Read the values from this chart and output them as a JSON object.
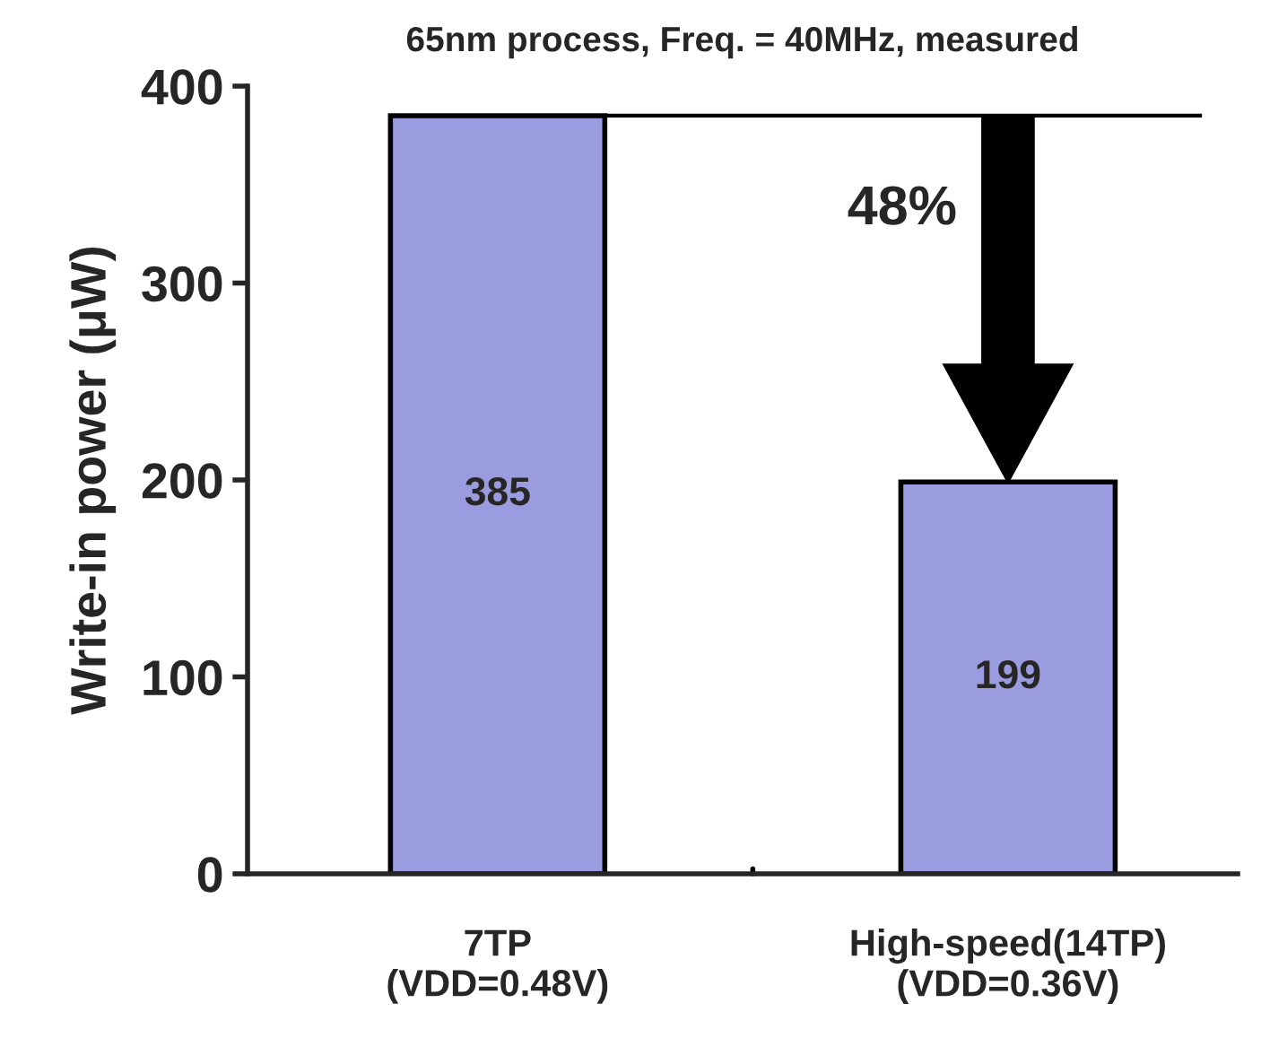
{
  "chart_data": {
    "type": "bar",
    "title": "65nm process, Freq. = 40MHz, measured",
    "ylabel": "Write-in power (μW)",
    "categories": [
      "7TP\n(VDD=0.48V)",
      "High-speed(14TP)\n(VDD=0.36V)"
    ],
    "values": [
      385,
      199
    ],
    "color": "#9b9be0",
    "ylim": [
      0,
      400
    ],
    "yticks": [
      0,
      100,
      200,
      300,
      400
    ],
    "grid": false,
    "data_labels": true,
    "ref_lines": [
      {
        "axis": "y",
        "value": 385,
        "color": "#000000"
      }
    ],
    "annotations": [
      "48%"
    ]
  }
}
